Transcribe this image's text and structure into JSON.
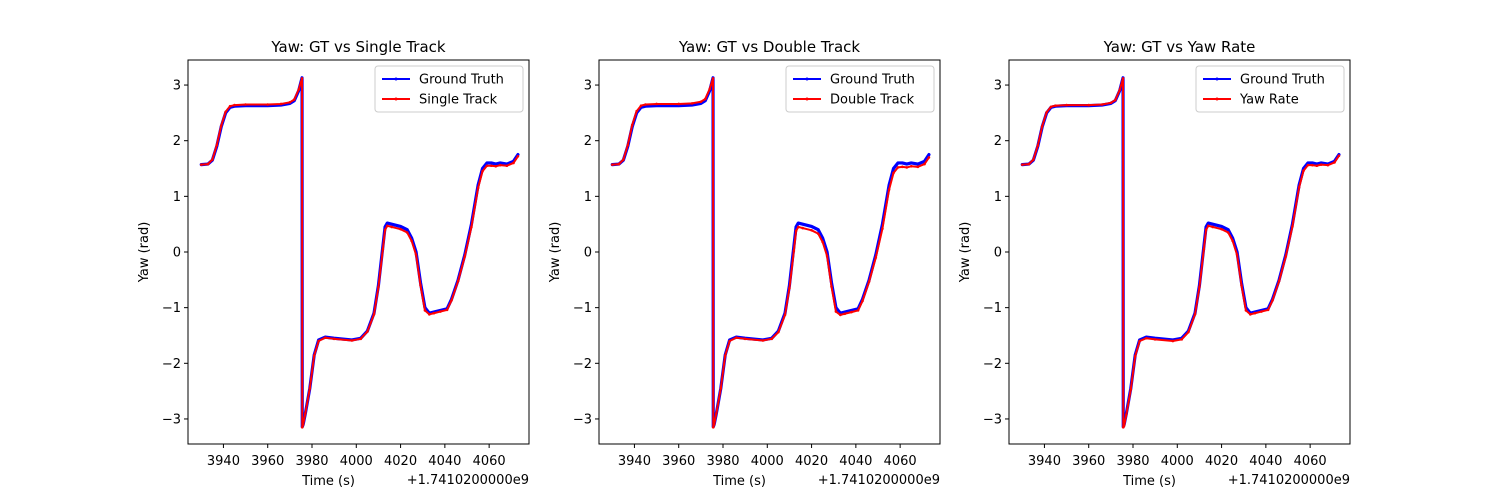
{
  "chart_data": [
    {
      "type": "line",
      "title": "Yaw: GT vs Single Track",
      "xlabel": "Time (s)",
      "ylabel": "Yaw (rad)",
      "x_offset_label": "+1.7410200000e9",
      "x_unit_offset": 1741020000,
      "xlim": [
        3924,
        4078
      ],
      "ylim": [
        -3.45,
        3.45
      ],
      "xticks": [
        3940,
        3960,
        3980,
        4000,
        4020,
        4040,
        4060
      ],
      "xtick_labels": [
        "3940",
        "3960",
        "3980",
        "4000",
        "4020",
        "4040",
        "4060"
      ],
      "yticks": [
        3,
        2,
        1,
        0,
        -1,
        -2,
        -3
      ],
      "ytick_labels": [
        "3",
        "2",
        "1",
        "0",
        "−1",
        "−2",
        "−3"
      ],
      "legend_position": "top-right",
      "series": [
        {
          "name": "Ground Truth",
          "color": "#0000ff",
          "x": [
            3930,
            3933,
            3935,
            3937,
            3939,
            3941,
            3943,
            3945,
            3950,
            3960,
            3966,
            3970,
            3972,
            3974,
            3975.5,
            3975.6,
            3976,
            3977,
            3979,
            3981,
            3983,
            3986,
            3990,
            3998,
            4002,
            4005,
            4008,
            4010,
            4012,
            4013,
            4014,
            4016,
            4020,
            4023,
            4025,
            4027,
            4029,
            4031,
            4033,
            4035,
            4038,
            4041,
            4043,
            4046,
            4049,
            4052,
            4055,
            4057,
            4059,
            4061,
            4063,
            4065,
            4068,
            4071,
            4073
          ],
          "y": [
            1.57,
            1.58,
            1.65,
            1.9,
            2.25,
            2.5,
            2.6,
            2.62,
            2.63,
            2.63,
            2.64,
            2.67,
            2.72,
            2.9,
            3.13,
            -3.14,
            -3.1,
            -2.9,
            -2.45,
            -1.85,
            -1.58,
            -1.53,
            -1.55,
            -1.58,
            -1.55,
            -1.42,
            -1.1,
            -0.6,
            0.1,
            0.45,
            0.52,
            0.5,
            0.46,
            0.4,
            0.25,
            0.0,
            -0.55,
            -1.0,
            -1.1,
            -1.08,
            -1.05,
            -1.02,
            -0.85,
            -0.5,
            -0.05,
            0.5,
            1.2,
            1.5,
            1.6,
            1.6,
            1.58,
            1.6,
            1.58,
            1.63,
            1.75
          ]
        },
        {
          "name": "Single Track",
          "color": "#ff0000",
          "x": [
            3930,
            3933,
            3935,
            3937,
            3939,
            3941,
            3943,
            3945,
            3950,
            3960,
            3966,
            3970,
            3972,
            3974,
            3975.5,
            3975.6,
            3976,
            3977,
            3979,
            3981,
            3983,
            3986,
            3990,
            3998,
            4002,
            4005,
            4008,
            4010,
            4012,
            4013,
            4014,
            4016,
            4020,
            4023,
            4025,
            4027,
            4029,
            4031,
            4033,
            4035,
            4038,
            4041,
            4043,
            4046,
            4049,
            4052,
            4055,
            4057,
            4059,
            4061,
            4063,
            4065,
            4068,
            4071,
            4073
          ],
          "y": [
            1.57,
            1.58,
            1.66,
            1.92,
            2.27,
            2.52,
            2.62,
            2.64,
            2.65,
            2.65,
            2.66,
            2.69,
            2.74,
            2.92,
            3.12,
            -3.15,
            -3.1,
            -2.9,
            -2.45,
            -1.86,
            -1.6,
            -1.54,
            -1.56,
            -1.59,
            -1.56,
            -1.43,
            -1.12,
            -0.63,
            0.05,
            0.4,
            0.47,
            0.45,
            0.41,
            0.35,
            0.2,
            -0.05,
            -0.6,
            -1.05,
            -1.12,
            -1.1,
            -1.07,
            -1.04,
            -0.87,
            -0.52,
            -0.08,
            0.45,
            1.15,
            1.45,
            1.55,
            1.55,
            1.54,
            1.56,
            1.55,
            1.6,
            1.72
          ]
        }
      ]
    },
    {
      "type": "line",
      "title": "Yaw: GT vs Double Track",
      "xlabel": "Time (s)",
      "ylabel": "Yaw (rad)",
      "x_offset_label": "+1.7410200000e9",
      "x_unit_offset": 1741020000,
      "xlim": [
        3924,
        4078
      ],
      "ylim": [
        -3.45,
        3.45
      ],
      "xticks": [
        3940,
        3960,
        3980,
        4000,
        4020,
        4040,
        4060
      ],
      "xtick_labels": [
        "3940",
        "3960",
        "3980",
        "4000",
        "4020",
        "4040",
        "4060"
      ],
      "yticks": [
        3,
        2,
        1,
        0,
        -1,
        -2,
        -3
      ],
      "ytick_labels": [
        "3",
        "2",
        "1",
        "0",
        "−1",
        "−2",
        "−3"
      ],
      "legend_position": "top-right",
      "series": [
        {
          "name": "Ground Truth",
          "color": "#0000ff",
          "x": [
            3930,
            3933,
            3935,
            3937,
            3939,
            3941,
            3943,
            3945,
            3950,
            3960,
            3966,
            3970,
            3972,
            3974,
            3975.5,
            3975.6,
            3976,
            3977,
            3979,
            3981,
            3983,
            3986,
            3990,
            3998,
            4002,
            4005,
            4008,
            4010,
            4012,
            4013,
            4014,
            4016,
            4020,
            4023,
            4025,
            4027,
            4029,
            4031,
            4033,
            4035,
            4038,
            4041,
            4043,
            4046,
            4049,
            4052,
            4055,
            4057,
            4059,
            4061,
            4063,
            4065,
            4068,
            4071,
            4073
          ],
          "y": [
            1.57,
            1.58,
            1.65,
            1.9,
            2.25,
            2.5,
            2.6,
            2.62,
            2.63,
            2.63,
            2.64,
            2.67,
            2.72,
            2.9,
            3.13,
            -3.14,
            -3.1,
            -2.9,
            -2.45,
            -1.85,
            -1.58,
            -1.53,
            -1.55,
            -1.58,
            -1.55,
            -1.42,
            -1.1,
            -0.6,
            0.1,
            0.45,
            0.52,
            0.5,
            0.46,
            0.4,
            0.25,
            0.0,
            -0.55,
            -1.0,
            -1.1,
            -1.08,
            -1.05,
            -1.02,
            -0.85,
            -0.5,
            -0.05,
            0.5,
            1.2,
            1.5,
            1.6,
            1.6,
            1.58,
            1.6,
            1.58,
            1.63,
            1.75
          ]
        },
        {
          "name": "Double Track",
          "color": "#ff0000",
          "x": [
            3930,
            3933,
            3935,
            3937,
            3939,
            3941,
            3943,
            3945,
            3950,
            3960,
            3966,
            3970,
            3972,
            3974,
            3975.5,
            3975.6,
            3976,
            3977,
            3979,
            3981,
            3983,
            3986,
            3990,
            3998,
            4002,
            4005,
            4008,
            4010,
            4012,
            4013,
            4014,
            4016,
            4020,
            4023,
            4025,
            4027,
            4029,
            4031,
            4033,
            4035,
            4038,
            4041,
            4043,
            4046,
            4049,
            4052,
            4055,
            4057,
            4059,
            4061,
            4063,
            4065,
            4068,
            4071,
            4073
          ],
          "y": [
            1.57,
            1.58,
            1.66,
            1.92,
            2.28,
            2.53,
            2.63,
            2.65,
            2.66,
            2.66,
            2.67,
            2.7,
            2.75,
            2.93,
            3.12,
            -3.15,
            -3.1,
            -2.9,
            -2.45,
            -1.86,
            -1.6,
            -1.54,
            -1.56,
            -1.59,
            -1.56,
            -1.44,
            -1.13,
            -0.65,
            0.02,
            0.38,
            0.45,
            0.43,
            0.39,
            0.33,
            0.18,
            -0.07,
            -0.62,
            -1.07,
            -1.13,
            -1.11,
            -1.08,
            -1.05,
            -0.88,
            -0.53,
            -0.1,
            0.42,
            1.12,
            1.42,
            1.52,
            1.53,
            1.52,
            1.54,
            1.53,
            1.58,
            1.7
          ]
        }
      ]
    },
    {
      "type": "line",
      "title": "Yaw: GT vs Yaw Rate",
      "xlabel": "Time (s)",
      "ylabel": "Yaw (rad)",
      "x_offset_label": "+1.7410200000e9",
      "x_unit_offset": 1741020000,
      "xlim": [
        3924,
        4078
      ],
      "ylim": [
        -3.45,
        3.45
      ],
      "xticks": [
        3940,
        3960,
        3980,
        4000,
        4020,
        4040,
        4060
      ],
      "xtick_labels": [
        "3940",
        "3960",
        "3980",
        "4000",
        "4020",
        "4040",
        "4060"
      ],
      "yticks": [
        3,
        2,
        1,
        0,
        -1,
        -2,
        -3
      ],
      "ytick_labels": [
        "3",
        "2",
        "1",
        "0",
        "−1",
        "−2",
        "−3"
      ],
      "legend_position": "top-right",
      "series": [
        {
          "name": "Ground Truth",
          "color": "#0000ff",
          "x": [
            3930,
            3933,
            3935,
            3937,
            3939,
            3941,
            3943,
            3945,
            3950,
            3960,
            3966,
            3970,
            3972,
            3974,
            3975.5,
            3975.6,
            3976,
            3977,
            3979,
            3981,
            3983,
            3986,
            3990,
            3998,
            4002,
            4005,
            4008,
            4010,
            4012,
            4013,
            4014,
            4016,
            4020,
            4023,
            4025,
            4027,
            4029,
            4031,
            4033,
            4035,
            4038,
            4041,
            4043,
            4046,
            4049,
            4052,
            4055,
            4057,
            4059,
            4061,
            4063,
            4065,
            4068,
            4071,
            4073
          ],
          "y": [
            1.57,
            1.58,
            1.65,
            1.9,
            2.25,
            2.5,
            2.6,
            2.62,
            2.63,
            2.63,
            2.64,
            2.67,
            2.72,
            2.9,
            3.13,
            -3.14,
            -3.1,
            -2.9,
            -2.45,
            -1.85,
            -1.58,
            -1.53,
            -1.55,
            -1.58,
            -1.55,
            -1.42,
            -1.1,
            -0.6,
            0.1,
            0.45,
            0.52,
            0.5,
            0.46,
            0.4,
            0.25,
            0.0,
            -0.55,
            -1.0,
            -1.1,
            -1.08,
            -1.05,
            -1.02,
            -0.85,
            -0.5,
            -0.05,
            0.5,
            1.2,
            1.5,
            1.6,
            1.6,
            1.58,
            1.6,
            1.58,
            1.63,
            1.75
          ]
        },
        {
          "name": "Yaw Rate",
          "color": "#ff0000",
          "x": [
            3930,
            3933,
            3935,
            3937,
            3939,
            3941,
            3943,
            3945,
            3950,
            3960,
            3966,
            3970,
            3972,
            3974,
            3975.5,
            3975.6,
            3976,
            3977,
            3979,
            3981,
            3983,
            3986,
            3990,
            3998,
            4002,
            4005,
            4008,
            4010,
            4012,
            4013,
            4014,
            4016,
            4020,
            4023,
            4025,
            4027,
            4029,
            4031,
            4033,
            4035,
            4038,
            4041,
            4043,
            4046,
            4049,
            4052,
            4055,
            4057,
            4059,
            4061,
            4063,
            4065,
            4068,
            4071,
            4073
          ],
          "y": [
            1.57,
            1.58,
            1.66,
            1.91,
            2.26,
            2.51,
            2.61,
            2.63,
            2.64,
            2.64,
            2.65,
            2.68,
            2.73,
            2.91,
            3.12,
            -3.15,
            -3.12,
            -2.92,
            -2.47,
            -1.87,
            -1.6,
            -1.55,
            -1.57,
            -1.6,
            -1.57,
            -1.44,
            -1.12,
            -0.63,
            0.05,
            0.4,
            0.47,
            0.45,
            0.41,
            0.35,
            0.2,
            -0.05,
            -0.6,
            -1.05,
            -1.12,
            -1.1,
            -1.07,
            -1.04,
            -0.87,
            -0.52,
            -0.08,
            0.46,
            1.16,
            1.46,
            1.56,
            1.56,
            1.55,
            1.57,
            1.56,
            1.61,
            1.73
          ]
        }
      ]
    }
  ]
}
